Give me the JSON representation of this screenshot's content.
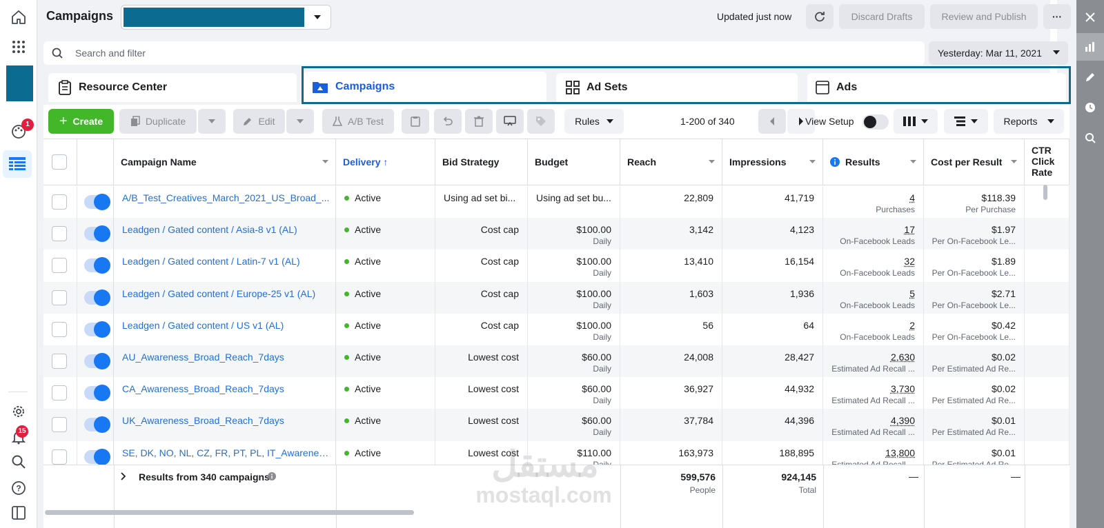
{
  "header": {
    "title": "Campaigns",
    "updated": "Updated just now",
    "discard": "Discard Drafts",
    "review": "Review and Publish",
    "more": "···"
  },
  "search": {
    "placeholder": "Search and filter",
    "date": "Yesterday: Mar 11, 2021"
  },
  "tabs": [
    {
      "label": "Resource Center"
    },
    {
      "label": "Campaigns"
    },
    {
      "label": "Ad Sets"
    },
    {
      "label": "Ads"
    }
  ],
  "toolbar": {
    "create": "Create",
    "duplicate": "Duplicate",
    "edit": "Edit",
    "abtest": "A/B Test",
    "rules": "Rules",
    "pagination": "1-200 of 340",
    "view_setup": "View Setup",
    "reports": "Reports"
  },
  "columns": {
    "name": "Campaign Name",
    "delivery": "Delivery ↑",
    "bid": "Bid Strategy",
    "budget": "Budget",
    "reach": "Reach",
    "impressions": "Impressions",
    "results": "Results",
    "cpr": "Cost per Result",
    "ctr": "CTR Click Rate"
  },
  "rows": [
    {
      "name": "A/B_Test_Creatives_March_2021_US_Broad_...",
      "delivery": "Active",
      "bid": "Using ad set bi...",
      "budget": "Using ad set bu...",
      "budget_sub": "",
      "reach": "22,809",
      "impressions": "41,719",
      "results": "4",
      "results_sub": "Purchases",
      "cpr": "$118.39",
      "cpr_sub": "Per Purchase"
    },
    {
      "name": "Leadgen / Gated content / Asia-8 v1 (AL)",
      "delivery": "Active",
      "bid": "Cost cap",
      "budget": "$100.00",
      "budget_sub": "Daily",
      "reach": "3,142",
      "impressions": "4,123",
      "results": "17",
      "results_sub": "On-Facebook Leads",
      "cpr": "$1.97",
      "cpr_sub": "Per On-Facebook Le..."
    },
    {
      "name": "Leadgen / Gated content / Latin-7 v1 (AL)",
      "delivery": "Active",
      "bid": "Cost cap",
      "budget": "$100.00",
      "budget_sub": "Daily",
      "reach": "13,410",
      "impressions": "16,154",
      "results": "32",
      "results_sub": "On-Facebook Leads",
      "cpr": "$1.89",
      "cpr_sub": "Per On-Facebook Le..."
    },
    {
      "name": "Leadgen / Gated content / Europe-25 v1 (AL)",
      "delivery": "Active",
      "bid": "Cost cap",
      "budget": "$100.00",
      "budget_sub": "Daily",
      "reach": "1,603",
      "impressions": "1,936",
      "results": "5",
      "results_sub": "On-Facebook Leads",
      "cpr": "$2.71",
      "cpr_sub": "Per On-Facebook Le..."
    },
    {
      "name": "Leadgen / Gated content / US v1 (AL)",
      "delivery": "Active",
      "bid": "Cost cap",
      "budget": "$100.00",
      "budget_sub": "Daily",
      "reach": "56",
      "impressions": "64",
      "results": "2",
      "results_sub": "On-Facebook Leads",
      "cpr": "$0.42",
      "cpr_sub": "Per On-Facebook Le..."
    },
    {
      "name": "AU_Awareness_Broad_Reach_7days",
      "delivery": "Active",
      "bid": "Lowest cost",
      "budget": "$60.00",
      "budget_sub": "Daily",
      "reach": "24,008",
      "impressions": "28,427",
      "results": "2,630",
      "results_sub": "Estimated Ad Recall ...",
      "cpr": "$0.02",
      "cpr_sub": "Per Estimated Ad Re..."
    },
    {
      "name": "CA_Awareness_Broad_Reach_7days",
      "delivery": "Active",
      "bid": "Lowest cost",
      "budget": "$60.00",
      "budget_sub": "Daily",
      "reach": "36,927",
      "impressions": "44,932",
      "results": "3,730",
      "results_sub": "Estimated Ad Recall ...",
      "cpr": "$0.02",
      "cpr_sub": "Per Estimated Ad Re..."
    },
    {
      "name": "UK_Awareness_Broad_Reach_7days",
      "delivery": "Active",
      "bid": "Lowest cost",
      "budget": "$60.00",
      "budget_sub": "Daily",
      "reach": "37,784",
      "impressions": "44,396",
      "results": "4,390",
      "results_sub": "Estimated Ad Recall ...",
      "cpr": "$0.01",
      "cpr_sub": "Per Estimated Ad Re..."
    },
    {
      "name": "SE, DK, NO, NL, CZ, FR, PT, PL, IT_Awareness_...",
      "delivery": "Active",
      "bid": "Lowest cost",
      "budget": "$110.00",
      "budget_sub": "Daily",
      "reach": "163,973",
      "impressions": "188,895",
      "results": "13,800",
      "results_sub": "Estimated Ad Recall ...",
      "cpr": "$0.01",
      "cpr_sub": "Per Estimated Ad Re..."
    }
  ],
  "footer": {
    "label": "Results from 340 campaigns",
    "reach": "599,576",
    "reach_sub": "People",
    "impressions": "924,145",
    "impressions_sub": "Total",
    "results": "—",
    "cpr": "—"
  },
  "badges": {
    "notifications": "1",
    "alerts": "15"
  },
  "watermark": {
    "arabic": "مستقل",
    "latin": "mostaql.com"
  },
  "colors": {
    "accent": "#0b6b91",
    "link": "#216fdb",
    "create": "#42b72a",
    "active_dot": "#42b72a",
    "badge": "#e41e3f"
  }
}
